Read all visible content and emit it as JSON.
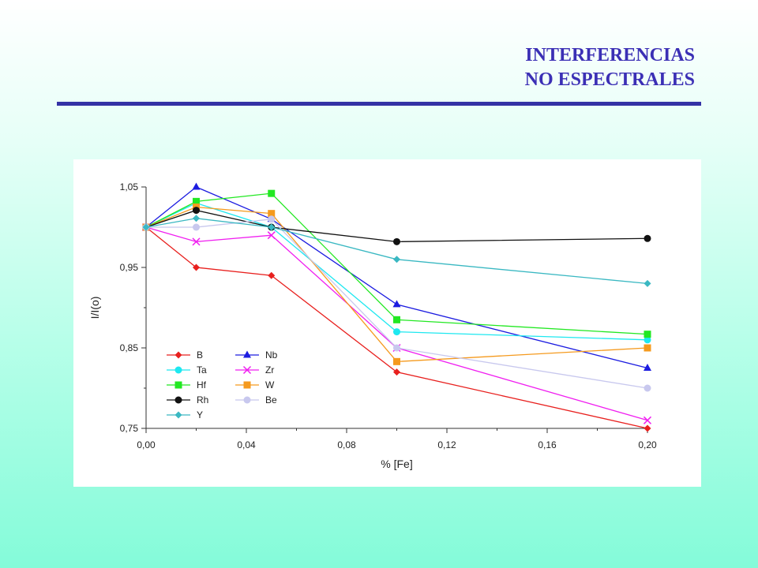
{
  "slide": {
    "title_line1": "INTERFERENCIAS",
    "title_line2": "NO ESPECTRALES",
    "title_color": "#3b2fb5",
    "rule_color": "#3432a5"
  },
  "chart_data": {
    "type": "line",
    "xlabel": "% [Fe]",
    "ylabel": "I/I(o)",
    "xlim": [
      0,
      0.2
    ],
    "ylim": [
      0.75,
      1.05
    ],
    "xticks": [
      "0,00",
      "0,04",
      "0,08",
      "0,12",
      "0,16",
      "0,20"
    ],
    "yticks": [
      "1,05",
      "0,95",
      "0,85",
      "0,75"
    ],
    "grid": false,
    "legend_position": "bottom-left",
    "x": [
      0,
      0.02,
      0.05,
      0.1,
      0.2
    ],
    "series": [
      {
        "name": "B",
        "marker": "diamond",
        "color": "#e8201e",
        "values": [
          1.0,
          0.95,
          0.94,
          0.82,
          0.75
        ]
      },
      {
        "name": "Nb",
        "marker": "triangle",
        "color": "#1c1ce0",
        "values": [
          1.0,
          1.05,
          1.01,
          0.904,
          0.825
        ]
      },
      {
        "name": "Ta",
        "marker": "circle",
        "color": "#1ee8f0",
        "values": [
          1.0,
          1.03,
          1.0,
          0.87,
          0.86
        ]
      },
      {
        "name": "Zr",
        "marker": "x",
        "color": "#f01ef0",
        "values": [
          1.0,
          0.982,
          0.99,
          0.85,
          0.76
        ]
      },
      {
        "name": "Hf",
        "marker": "square",
        "color": "#22e822",
        "values": [
          1.0,
          1.032,
          1.042,
          0.885,
          0.867
        ]
      },
      {
        "name": "W",
        "marker": "square",
        "color": "#f59a1e",
        "values": [
          1.0,
          1.025,
          1.017,
          0.833,
          0.85
        ]
      },
      {
        "name": "Rh",
        "marker": "circle",
        "color": "#111111",
        "values": [
          1.0,
          1.021,
          1.0,
          0.982,
          0.986
        ]
      },
      {
        "name": "Be",
        "marker": "circle",
        "color": "#c8c8ee",
        "values": [
          1.0,
          1.0,
          1.01,
          0.85,
          0.8
        ]
      },
      {
        "name": "Y",
        "marker": "diamond",
        "color": "#3ab8c2",
        "values": [
          1.0,
          1.011,
          1.0,
          0.96,
          0.93
        ]
      }
    ]
  }
}
